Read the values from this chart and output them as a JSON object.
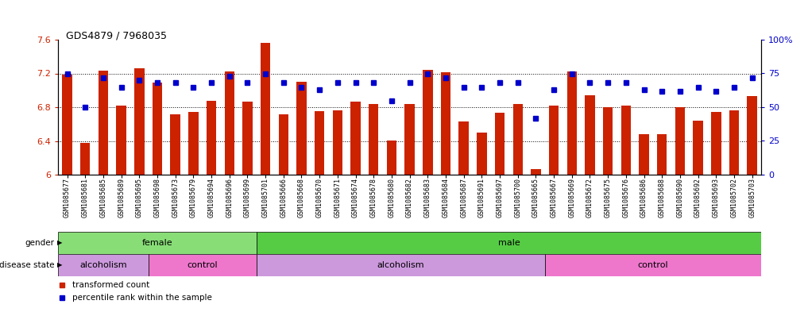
{
  "title": "GDS4879 / 7968035",
  "samples": [
    "GSM1085677",
    "GSM1085681",
    "GSM1085685",
    "GSM1085689",
    "GSM1085695",
    "GSM1085698",
    "GSM1085673",
    "GSM1085679",
    "GSM1085694",
    "GSM1085696",
    "GSM1085699",
    "GSM1085701",
    "GSM1085666",
    "GSM1085668",
    "GSM1085670",
    "GSM1085671",
    "GSM1085674",
    "GSM1085678",
    "GSM1085680",
    "GSM1085682",
    "GSM1085683",
    "GSM1085684",
    "GSM1085687",
    "GSM1085691",
    "GSM1085697",
    "GSM1085700",
    "GSM1085665",
    "GSM1085667",
    "GSM1085669",
    "GSM1085672",
    "GSM1085675",
    "GSM1085676",
    "GSM1085686",
    "GSM1085688",
    "GSM1085690",
    "GSM1085692",
    "GSM1085693",
    "GSM1085702",
    "GSM1085703"
  ],
  "bar_values": [
    7.19,
    6.38,
    7.23,
    6.82,
    7.26,
    7.09,
    6.72,
    6.74,
    6.88,
    7.22,
    6.87,
    7.56,
    6.72,
    7.1,
    6.75,
    6.76,
    6.87,
    6.84,
    6.4,
    6.84,
    7.24,
    7.21,
    6.63,
    6.5,
    6.73,
    6.84,
    6.07,
    6.82,
    7.22,
    6.94,
    6.8,
    6.82,
    6.48,
    6.48,
    6.8,
    6.64,
    6.74,
    6.76,
    6.93
  ],
  "percentile_values": [
    75,
    50,
    72,
    65,
    70,
    68,
    68,
    65,
    68,
    73,
    68,
    75,
    68,
    65,
    63,
    68,
    68,
    68,
    55,
    68,
    75,
    72,
    65,
    65,
    68,
    68,
    42,
    63,
    75,
    68,
    68,
    68,
    63,
    62,
    62,
    65,
    62,
    65,
    72
  ],
  "bar_color": "#cc2200",
  "dot_color": "#0000cc",
  "ylim_left": [
    6.0,
    7.6
  ],
  "ylim_right": [
    0,
    100
  ],
  "yticks_left": [
    6.0,
    6.4,
    6.8,
    7.2,
    7.6
  ],
  "ytick_labels_left": [
    "6",
    "6.4",
    "6.8",
    "7.2",
    "7.6"
  ],
  "yticks_right": [
    0,
    25,
    50,
    75,
    100
  ],
  "ytick_labels_right": [
    "0",
    "25",
    "50",
    "75",
    "100%"
  ],
  "gender_regions": [
    {
      "label": "female",
      "start": 0,
      "end": 11,
      "color": "#88dd77"
    },
    {
      "label": "male",
      "start": 11,
      "end": 39,
      "color": "#55cc44"
    }
  ],
  "disease_regions": [
    {
      "label": "alcoholism",
      "start": 0,
      "end": 5,
      "color": "#cc99dd"
    },
    {
      "label": "control",
      "start": 5,
      "end": 11,
      "color": "#ee77cc"
    },
    {
      "label": "alcoholism",
      "start": 11,
      "end": 27,
      "color": "#cc99dd"
    },
    {
      "label": "control",
      "start": 27,
      "end": 39,
      "color": "#ee77cc"
    }
  ],
  "legend_items": [
    {
      "label": "transformed count",
      "color": "#cc2200",
      "marker": "s"
    },
    {
      "label": "percentile rank within the sample",
      "color": "#0000cc",
      "marker": "s"
    }
  ],
  "xticklabel_bg": "#dddddd"
}
